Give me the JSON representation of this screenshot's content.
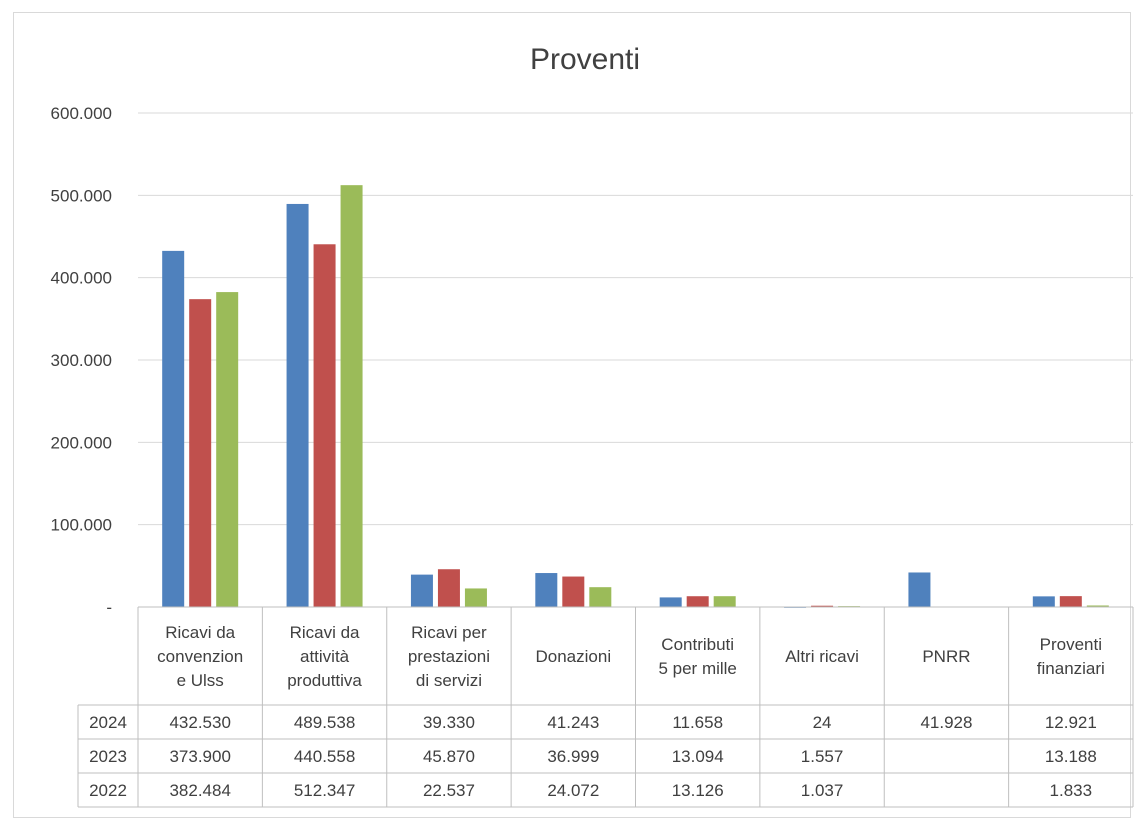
{
  "chart_data": {
    "type": "bar",
    "title": "Proventi",
    "categories": [
      [
        "Ricavi da",
        "convenzion",
        "e Ulss"
      ],
      [
        "Ricavi da",
        "attività",
        "produttiva"
      ],
      [
        "Ricavi per",
        "prestazioni",
        "di servizi"
      ],
      [
        "Donazioni"
      ],
      [
        "Contributi",
        "5 per mille"
      ],
      [
        "Altri ricavi"
      ],
      [
        "PNRR"
      ],
      [
        "Proventi",
        "finanziari"
      ]
    ],
    "series": [
      {
        "name": "2024",
        "color": "#4f81bd",
        "values": [
          432530,
          489538,
          39330,
          41243,
          11658,
          24,
          41928,
          12921
        ],
        "labels": [
          "432.530",
          "489.538",
          "39.330",
          "41.243",
          "11.658",
          "24",
          "41.928",
          "12.921"
        ]
      },
      {
        "name": "2023",
        "color": "#c0504d",
        "values": [
          373900,
          440558,
          45870,
          36999,
          13094,
          1557,
          0,
          13188
        ],
        "labels": [
          "373.900",
          "440.558",
          "45.870",
          "36.999",
          "13.094",
          "1.557",
          "",
          "13.188"
        ]
      },
      {
        "name": "2022",
        "color": "#9bbb59",
        "values": [
          382484,
          512347,
          22537,
          24072,
          13126,
          1037,
          0,
          1833
        ],
        "labels": [
          "382.484",
          "512.347",
          "22.537",
          "24.072",
          "13.126",
          "1.037",
          "",
          "1.833"
        ]
      }
    ],
    "ylim": [
      0,
      600000
    ],
    "yticks": [
      0,
      100000,
      200000,
      300000,
      400000,
      500000,
      600000
    ],
    "ytick_labels": [
      "-",
      "100.000",
      "200.000",
      "300.000",
      "400.000",
      "500.000",
      "600.000"
    ],
    "grid": true,
    "legend": "data-table"
  }
}
